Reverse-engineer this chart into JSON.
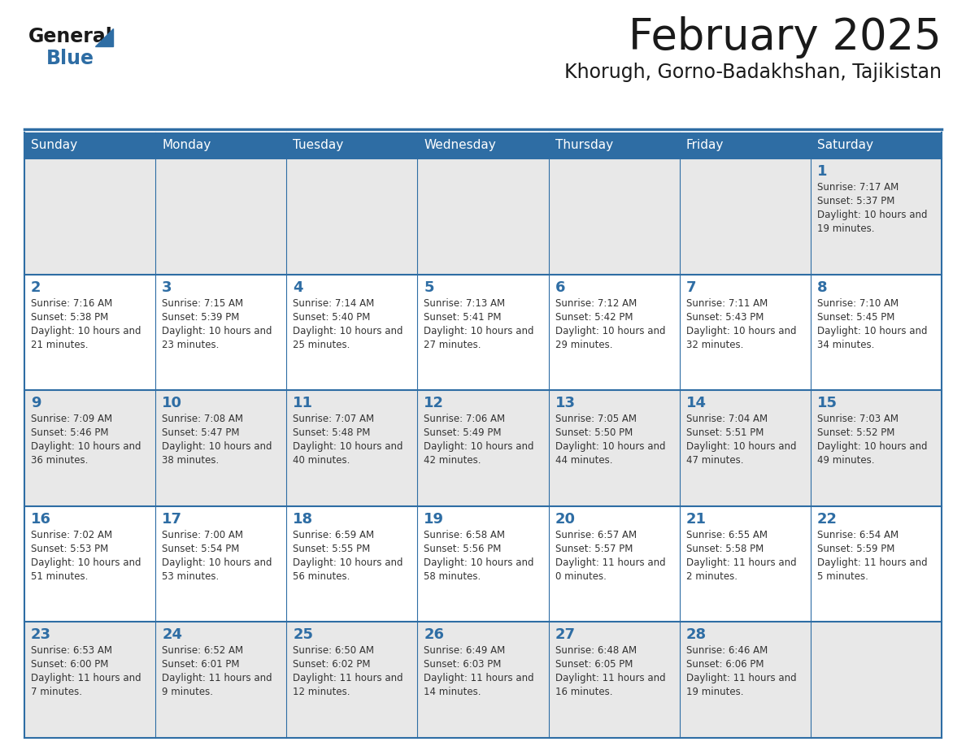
{
  "title": "February 2025",
  "subtitle": "Khorugh, Gorno-Badakhshan, Tajikistan",
  "header_bg": "#2e6da4",
  "header_text": "#ffffff",
  "cell_bg_light": "#e8e8e8",
  "cell_bg_white": "#ffffff",
  "cell_border": "#2e6da4",
  "day_headers": [
    "Sunday",
    "Monday",
    "Tuesday",
    "Wednesday",
    "Thursday",
    "Friday",
    "Saturday"
  ],
  "title_color": "#1a1a1a",
  "subtitle_color": "#1a1a1a",
  "day_num_color": "#2e6da4",
  "cell_text_color": "#333333",
  "logo_general_color": "#1a1a1a",
  "logo_blue_color": "#2e6da4",
  "calendar_data": [
    [
      null,
      null,
      null,
      null,
      null,
      null,
      {
        "day": 1,
        "sunrise": "7:17 AM",
        "sunset": "5:37 PM",
        "daylight": "10 hours and 19 minutes."
      }
    ],
    [
      {
        "day": 2,
        "sunrise": "7:16 AM",
        "sunset": "5:38 PM",
        "daylight": "10 hours and 21 minutes."
      },
      {
        "day": 3,
        "sunrise": "7:15 AM",
        "sunset": "5:39 PM",
        "daylight": "10 hours and 23 minutes."
      },
      {
        "day": 4,
        "sunrise": "7:14 AM",
        "sunset": "5:40 PM",
        "daylight": "10 hours and 25 minutes."
      },
      {
        "day": 5,
        "sunrise": "7:13 AM",
        "sunset": "5:41 PM",
        "daylight": "10 hours and 27 minutes."
      },
      {
        "day": 6,
        "sunrise": "7:12 AM",
        "sunset": "5:42 PM",
        "daylight": "10 hours and 29 minutes."
      },
      {
        "day": 7,
        "sunrise": "7:11 AM",
        "sunset": "5:43 PM",
        "daylight": "10 hours and 32 minutes."
      },
      {
        "day": 8,
        "sunrise": "7:10 AM",
        "sunset": "5:45 PM",
        "daylight": "10 hours and 34 minutes."
      }
    ],
    [
      {
        "day": 9,
        "sunrise": "7:09 AM",
        "sunset": "5:46 PM",
        "daylight": "10 hours and 36 minutes."
      },
      {
        "day": 10,
        "sunrise": "7:08 AM",
        "sunset": "5:47 PM",
        "daylight": "10 hours and 38 minutes."
      },
      {
        "day": 11,
        "sunrise": "7:07 AM",
        "sunset": "5:48 PM",
        "daylight": "10 hours and 40 minutes."
      },
      {
        "day": 12,
        "sunrise": "7:06 AM",
        "sunset": "5:49 PM",
        "daylight": "10 hours and 42 minutes."
      },
      {
        "day": 13,
        "sunrise": "7:05 AM",
        "sunset": "5:50 PM",
        "daylight": "10 hours and 44 minutes."
      },
      {
        "day": 14,
        "sunrise": "7:04 AM",
        "sunset": "5:51 PM",
        "daylight": "10 hours and 47 minutes."
      },
      {
        "day": 15,
        "sunrise": "7:03 AM",
        "sunset": "5:52 PM",
        "daylight": "10 hours and 49 minutes."
      }
    ],
    [
      {
        "day": 16,
        "sunrise": "7:02 AM",
        "sunset": "5:53 PM",
        "daylight": "10 hours and 51 minutes."
      },
      {
        "day": 17,
        "sunrise": "7:00 AM",
        "sunset": "5:54 PM",
        "daylight": "10 hours and 53 minutes."
      },
      {
        "day": 18,
        "sunrise": "6:59 AM",
        "sunset": "5:55 PM",
        "daylight": "10 hours and 56 minutes."
      },
      {
        "day": 19,
        "sunrise": "6:58 AM",
        "sunset": "5:56 PM",
        "daylight": "10 hours and 58 minutes."
      },
      {
        "day": 20,
        "sunrise": "6:57 AM",
        "sunset": "5:57 PM",
        "daylight": "11 hours and 0 minutes."
      },
      {
        "day": 21,
        "sunrise": "6:55 AM",
        "sunset": "5:58 PM",
        "daylight": "11 hours and 2 minutes."
      },
      {
        "day": 22,
        "sunrise": "6:54 AM",
        "sunset": "5:59 PM",
        "daylight": "11 hours and 5 minutes."
      }
    ],
    [
      {
        "day": 23,
        "sunrise": "6:53 AM",
        "sunset": "6:00 PM",
        "daylight": "11 hours and 7 minutes."
      },
      {
        "day": 24,
        "sunrise": "6:52 AM",
        "sunset": "6:01 PM",
        "daylight": "11 hours and 9 minutes."
      },
      {
        "day": 25,
        "sunrise": "6:50 AM",
        "sunset": "6:02 PM",
        "daylight": "11 hours and 12 minutes."
      },
      {
        "day": 26,
        "sunrise": "6:49 AM",
        "sunset": "6:03 PM",
        "daylight": "11 hours and 14 minutes."
      },
      {
        "day": 27,
        "sunrise": "6:48 AM",
        "sunset": "6:05 PM",
        "daylight": "11 hours and 16 minutes."
      },
      {
        "day": 28,
        "sunrise": "6:46 AM",
        "sunset": "6:06 PM",
        "daylight": "11 hours and 19 minutes."
      },
      null
    ]
  ]
}
